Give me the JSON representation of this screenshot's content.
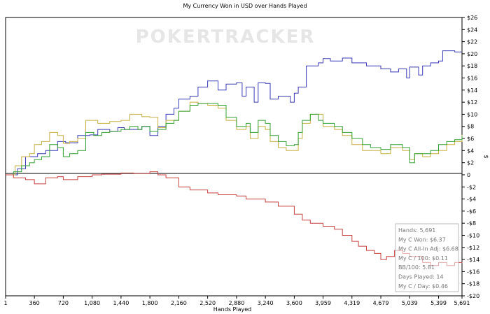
{
  "chart_data": {
    "type": "line",
    "title": "My Currency Won in USD over Hands Played",
    "xlabel": "Hands Played",
    "ylabel": "$",
    "watermark": "POKERTRACKER",
    "xlim": [
      1,
      5691
    ],
    "ylim": [
      -20,
      26
    ],
    "x_ticks": [
      1,
      360,
      720,
      1080,
      1440,
      1800,
      2160,
      2520,
      2880,
      3240,
      3600,
      3959,
      4319,
      4679,
      5039,
      5399,
      5691
    ],
    "x_tick_labels": [
      "1",
      "360",
      "720",
      "1,080",
      "1,440",
      "1,800",
      "2,160",
      "2,520",
      "2,880",
      "3,240",
      "3,600",
      "3,959",
      "4,319",
      "4,679",
      "5,039",
      "5,399",
      "5,691"
    ],
    "y_ticks": [
      26,
      24,
      22,
      20,
      18,
      16,
      14,
      12,
      10,
      8,
      6,
      4,
      2,
      0,
      -2,
      -4,
      -6,
      -8,
      -10,
      -12,
      -14,
      -16,
      -18,
      -20
    ],
    "y_tick_labels": [
      "$26",
      "$24",
      "$22",
      "$20",
      "$18",
      "$16",
      "$14",
      "$12",
      "$10",
      "$8",
      "$6",
      "$4",
      "$2",
      "0",
      "-$2",
      "-$4",
      "-$6",
      "-$8",
      "-$10",
      "-$12",
      "-$14",
      "-$16",
      "-$18",
      "-$20"
    ],
    "series": [
      {
        "color": "#3a3ab8",
        "points": [
          [
            1,
            0
          ],
          [
            150,
            1
          ],
          [
            250,
            3
          ],
          [
            400,
            3.5
          ],
          [
            500,
            4
          ],
          [
            650,
            5.5
          ],
          [
            750,
            5.3
          ],
          [
            900,
            6.5
          ],
          [
            1050,
            6.6
          ],
          [
            1150,
            7.5
          ],
          [
            1300,
            7.2
          ],
          [
            1400,
            7.8
          ],
          [
            1480,
            7.5
          ],
          [
            1700,
            8
          ],
          [
            1800,
            6.5
          ],
          [
            1900,
            8
          ],
          [
            2000,
            10
          ],
          [
            2100,
            11
          ],
          [
            2160,
            12.5
          ],
          [
            2300,
            13
          ],
          [
            2400,
            14.5
          ],
          [
            2520,
            15.5
          ],
          [
            2650,
            14
          ],
          [
            2750,
            15
          ],
          [
            2880,
            15.2
          ],
          [
            2950,
            13
          ],
          [
            3000,
            14.5
          ],
          [
            3100,
            12
          ],
          [
            3150,
            15.2
          ],
          [
            3240,
            15.1
          ],
          [
            3300,
            12.5
          ],
          [
            3400,
            13
          ],
          [
            3550,
            12
          ],
          [
            3600,
            13.5
          ],
          [
            3650,
            14.5
          ],
          [
            3750,
            18
          ],
          [
            3900,
            18.5
          ],
          [
            3959,
            19.2
          ],
          [
            4050,
            18.8
          ],
          [
            4200,
            19.3
          ],
          [
            4319,
            18.5
          ],
          [
            4500,
            18
          ],
          [
            4600,
            18
          ],
          [
            4679,
            17.5
          ],
          [
            4800,
            17
          ],
          [
            4900,
            17.5
          ],
          [
            5000,
            16
          ],
          [
            5039,
            17.8
          ],
          [
            5150,
            16.5
          ],
          [
            5200,
            18
          ],
          [
            5300,
            18.5
          ],
          [
            5399,
            18.8
          ],
          [
            5450,
            20.5
          ],
          [
            5600,
            20.3
          ],
          [
            5691,
            20.3
          ]
        ]
      },
      {
        "color": "#c8b040",
        "points": [
          [
            1,
            0
          ],
          [
            120,
            1.5
          ],
          [
            200,
            3
          ],
          [
            300,
            3.5
          ],
          [
            360,
            5
          ],
          [
            450,
            5.5
          ],
          [
            550,
            7
          ],
          [
            650,
            6.5
          ],
          [
            720,
            5.2
          ],
          [
            800,
            5.5
          ],
          [
            900,
            6
          ],
          [
            1000,
            9
          ],
          [
            1150,
            8.5
          ],
          [
            1300,
            8.8
          ],
          [
            1440,
            9
          ],
          [
            1550,
            10
          ],
          [
            1700,
            9.6
          ],
          [
            1800,
            9.5
          ],
          [
            1900,
            7.8
          ],
          [
            2000,
            9
          ],
          [
            2160,
            10.5
          ],
          [
            2300,
            12
          ],
          [
            2400,
            11.8
          ],
          [
            2520,
            11.5
          ],
          [
            2650,
            11
          ],
          [
            2750,
            9
          ],
          [
            2880,
            7.5
          ],
          [
            3000,
            8
          ],
          [
            3050,
            6
          ],
          [
            3150,
            8
          ],
          [
            3240,
            7.5
          ],
          [
            3300,
            5.5
          ],
          [
            3400,
            4.5
          ],
          [
            3500,
            4
          ],
          [
            3600,
            4
          ],
          [
            3650,
            6
          ],
          [
            3700,
            8.5
          ],
          [
            3800,
            10
          ],
          [
            3959,
            8
          ],
          [
            4100,
            7.5
          ],
          [
            4200,
            6.5
          ],
          [
            4319,
            5
          ],
          [
            4450,
            4
          ],
          [
            4550,
            4
          ],
          [
            4679,
            3.5
          ],
          [
            4800,
            4.5
          ],
          [
            4950,
            4
          ],
          [
            5039,
            2.5
          ],
          [
            5100,
            3.5
          ],
          [
            5200,
            3
          ],
          [
            5300,
            3.5
          ],
          [
            5399,
            4
          ],
          [
            5500,
            5
          ],
          [
            5600,
            5.5
          ],
          [
            5691,
            6.6
          ]
        ]
      },
      {
        "color": "#30a030",
        "points": [
          [
            1,
            0
          ],
          [
            100,
            0.5
          ],
          [
            200,
            1.5
          ],
          [
            300,
            2
          ],
          [
            360,
            2.5
          ],
          [
            450,
            3
          ],
          [
            550,
            5
          ],
          [
            650,
            4.5
          ],
          [
            720,
            3
          ],
          [
            800,
            3.5
          ],
          [
            900,
            4
          ],
          [
            1000,
            7
          ],
          [
            1100,
            6.5
          ],
          [
            1200,
            7
          ],
          [
            1300,
            7.2
          ],
          [
            1440,
            7.5
          ],
          [
            1550,
            8
          ],
          [
            1650,
            7.5
          ],
          [
            1700,
            8
          ],
          [
            1800,
            7.2
          ],
          [
            1900,
            7.5
          ],
          [
            2000,
            8.5
          ],
          [
            2100,
            9
          ],
          [
            2160,
            10.5
          ],
          [
            2300,
            11.5
          ],
          [
            2400,
            11.8
          ],
          [
            2520,
            11.8
          ],
          [
            2650,
            11.5
          ],
          [
            2750,
            9.5
          ],
          [
            2880,
            8
          ],
          [
            3000,
            8.5
          ],
          [
            3050,
            7
          ],
          [
            3150,
            9
          ],
          [
            3240,
            8.5
          ],
          [
            3300,
            6.5
          ],
          [
            3400,
            5.5
          ],
          [
            3500,
            4.8
          ],
          [
            3600,
            5
          ],
          [
            3650,
            7
          ],
          [
            3700,
            9
          ],
          [
            3800,
            10
          ],
          [
            3900,
            9
          ],
          [
            3959,
            8.5
          ],
          [
            4100,
            8
          ],
          [
            4200,
            7
          ],
          [
            4319,
            6
          ],
          [
            4450,
            5
          ],
          [
            4550,
            4.5
          ],
          [
            4679,
            4.2
          ],
          [
            4800,
            5
          ],
          [
            4950,
            4.5
          ],
          [
            5039,
            2
          ],
          [
            5100,
            3.5
          ],
          [
            5200,
            3.5
          ],
          [
            5300,
            4
          ],
          [
            5399,
            5
          ],
          [
            5500,
            5.5
          ],
          [
            5600,
            5.8
          ],
          [
            5691,
            6.4
          ]
        ]
      },
      {
        "color": "#c84040",
        "points": [
          [
            1,
            0
          ],
          [
            100,
            -0.5
          ],
          [
            250,
            -0.8
          ],
          [
            360,
            -1.5
          ],
          [
            500,
            -0.5
          ],
          [
            650,
            -0.3
          ],
          [
            720,
            -0.8
          ],
          [
            900,
            -0.3
          ],
          [
            1080,
            0
          ],
          [
            1200,
            0.1
          ],
          [
            1440,
            0.3
          ],
          [
            1600,
            0.2
          ],
          [
            1800,
            0.5
          ],
          [
            1900,
            0
          ],
          [
            2000,
            -0.5
          ],
          [
            2160,
            -2
          ],
          [
            2300,
            -2.5
          ],
          [
            2520,
            -3
          ],
          [
            2650,
            -3.3
          ],
          [
            2880,
            -3.5
          ],
          [
            3000,
            -4
          ],
          [
            3240,
            -4.5
          ],
          [
            3400,
            -5.2
          ],
          [
            3600,
            -6.5
          ],
          [
            3700,
            -7.5
          ],
          [
            3800,
            -8
          ],
          [
            3959,
            -8.5
          ],
          [
            4100,
            -9
          ],
          [
            4200,
            -10
          ],
          [
            4319,
            -11
          ],
          [
            4400,
            -11.8
          ],
          [
            4500,
            -12.5
          ],
          [
            4600,
            -13
          ],
          [
            4679,
            -14
          ],
          [
            4750,
            -13.5
          ],
          [
            4850,
            -12.5
          ],
          [
            4950,
            -13
          ],
          [
            5039,
            -13.5
          ],
          [
            5100,
            -13.5
          ],
          [
            5200,
            -14.5
          ],
          [
            5300,
            -15
          ],
          [
            5399,
            -14.5
          ],
          [
            5500,
            -15
          ],
          [
            5600,
            -14.5
          ],
          [
            5691,
            -14.6
          ]
        ]
      }
    ],
    "stats_box": {
      "lines": [
        "Hands: 5,691",
        "My C Won: $6.37",
        "My C All-In Adj: $6.68",
        "My C / 100: $0.11",
        "BB/100: 5.81",
        "Days Played: 14",
        "My C / Day: $0.46"
      ]
    },
    "grid": false,
    "legend": "none"
  }
}
